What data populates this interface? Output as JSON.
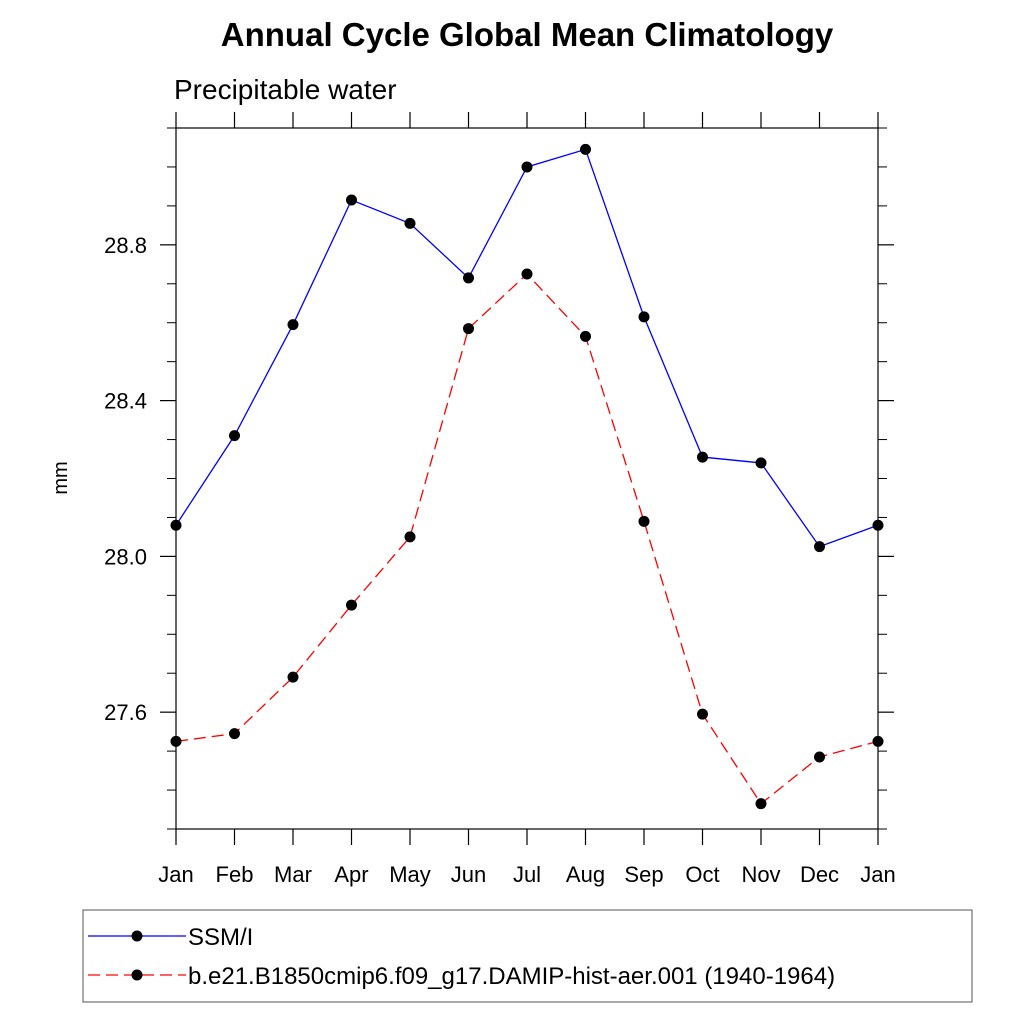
{
  "chart_data": {
    "type": "line",
    "title": "Annual Cycle Global Mean Climatology",
    "subtitle": "Precipitable water",
    "xlabel": "",
    "ylabel": "mm",
    "categories": [
      "Jan",
      "Feb",
      "Mar",
      "Apr",
      "May",
      "Jun",
      "Jul",
      "Aug",
      "Sep",
      "Oct",
      "Nov",
      "Dec",
      "Jan"
    ],
    "ylim": [
      27.3,
      29.1
    ],
    "yticks": [
      27.6,
      28.0,
      28.4,
      28.8
    ],
    "ytick_labels": [
      "27.6",
      "28.0",
      "28.4",
      "28.8"
    ],
    "minor_ytick_step": 0.1,
    "grid": false,
    "legend_position": "bottom",
    "series": [
      {
        "name": "SSM/I",
        "color": "#0000ff",
        "line_style": "solid",
        "marker": "filled-circle",
        "values": [
          28.08,
          28.31,
          28.595,
          28.915,
          28.855,
          28.715,
          29.0,
          29.045,
          28.615,
          28.255,
          28.24,
          28.025,
          28.08
        ]
      },
      {
        "name": "b.e21.B1850cmip6.f09_g17.DAMIP-hist-aer.001 (1940-1964)",
        "color": "#ff0000",
        "line_style": "dashed",
        "marker": "filled-circle",
        "values": [
          27.525,
          27.545,
          27.69,
          27.875,
          28.05,
          28.585,
          28.725,
          28.565,
          28.09,
          27.595,
          27.365,
          27.485,
          27.525
        ]
      }
    ]
  }
}
